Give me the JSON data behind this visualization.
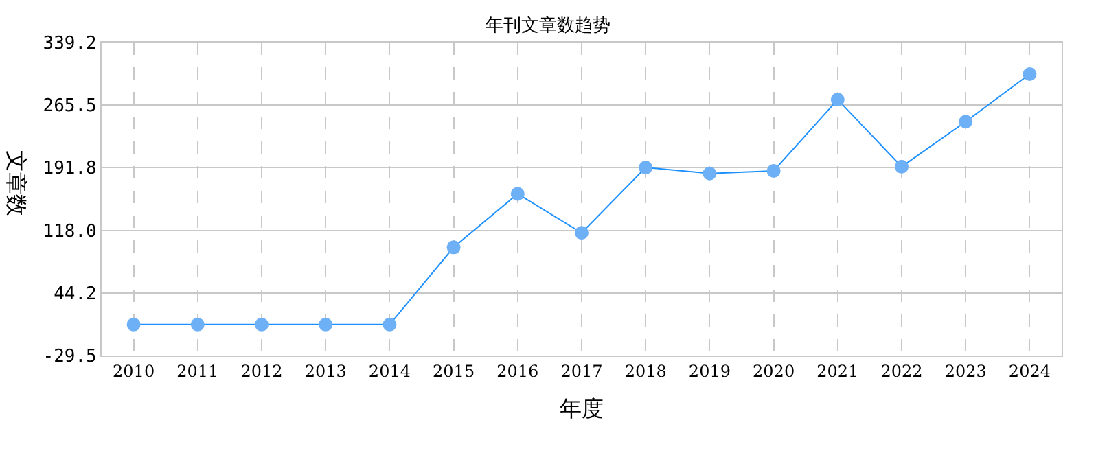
{
  "chart_data": {
    "type": "line",
    "title": "年刊文章数趋势",
    "xlabel": "年度",
    "ylabel": "文章数",
    "categories": [
      "2010",
      "2011",
      "2012",
      "2013",
      "2014",
      "2015",
      "2016",
      "2017",
      "2018",
      "2019",
      "2020",
      "2021",
      "2022",
      "2023",
      "2024"
    ],
    "series": [
      {
        "color": "#1e90ff",
        "values": [
          7,
          7,
          7,
          7,
          7,
          98,
          161,
          115,
          192,
          185,
          188,
          272,
          193,
          246,
          302
        ]
      }
    ],
    "ylim": [
      -29.5,
      339.2
    ],
    "yticks": [
      -29.5,
      44.2,
      {
        "value": 118,
        "label": "118.0"
      },
      191.8,
      265.5,
      339.2
    ],
    "grid": true,
    "marker": "circle",
    "line_style": "solid"
  }
}
